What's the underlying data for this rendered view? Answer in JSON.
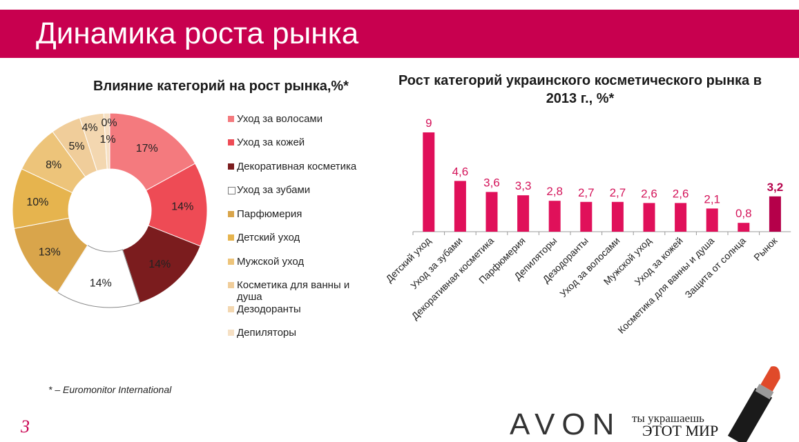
{
  "header": {
    "title": "Динамика роста рынка"
  },
  "colors": {
    "header_bg": "#c8004f",
    "bar": "#e0105a",
    "bar_highlight": "#b5004a",
    "value_label": "#d4145a"
  },
  "chart_data": [
    {
      "type": "pie",
      "title": "Влияние категорий на рост рынка,%*",
      "donut": true,
      "legend_position": "right",
      "slices": [
        {
          "label": "Уход за волосами",
          "value": 17,
          "display": "17%",
          "color": "#f47a7e"
        },
        {
          "label": "Уход за кожей",
          "value": 14,
          "display": "14%",
          "color": "#ee4b55"
        },
        {
          "label": "Декоративная косметика",
          "value": 14,
          "display": "14%",
          "color": "#7b1c1e"
        },
        {
          "label": "Уход за зубами",
          "value": 14,
          "display": "14%",
          "color": "#ffffff"
        },
        {
          "label": "Парфюмерия",
          "value": 13,
          "display": "13%",
          "color": "#d9a54b"
        },
        {
          "label": "Детский уход",
          "value": 10,
          "display": "10%",
          "color": "#e6b44e"
        },
        {
          "label": "Мужской уход",
          "value": 8,
          "display": "8%",
          "color": "#edc47a"
        },
        {
          "label": "Косметика для ванны и душа",
          "value": 5,
          "display": "5%",
          "color": "#f0cd9a"
        },
        {
          "label": "Дезодоранты",
          "value": 4,
          "display": "4%",
          "color": "#f3d7b0"
        },
        {
          "label": "Депиляторы",
          "value": 1,
          "display": "1%",
          "color": "#f6e0c4"
        },
        {
          "label": "",
          "value": 0,
          "display": "0%",
          "color": "#f6e0c4"
        }
      ]
    },
    {
      "type": "bar",
      "title": "Рост категорий украинского косметического рынка в 2013 г., %*",
      "categories": [
        "Детский уход",
        "Уход за зубами",
        "Декоративная косметика",
        "Парфюмерия",
        "Депиляторы",
        "Дезодоранты",
        "Уход за волосами",
        "Мужской уход",
        "Уход за кожей",
        "Косметика для ванны и душа",
        "Защита от солнца",
        "Рынок"
      ],
      "values": [
        9,
        4.6,
        3.6,
        3.3,
        2.8,
        2.7,
        2.7,
        2.6,
        2.6,
        2.1,
        0.8,
        3.2
      ],
      "value_labels": [
        "9",
        "4,6",
        "3,6",
        "3,3",
        "2,8",
        "2,7",
        "2,7",
        "2,6",
        "2,6",
        "2,1",
        "0,8",
        "3,2"
      ],
      "highlight_index": 11,
      "ylim": [
        0,
        10
      ]
    }
  ],
  "footnote": "* – Euromonitor International",
  "page_number": "3",
  "brand": {
    "logo": "AVON",
    "slogan_line1": "ты украшаешь",
    "slogan_line2": "ЭТОТ МИР"
  }
}
